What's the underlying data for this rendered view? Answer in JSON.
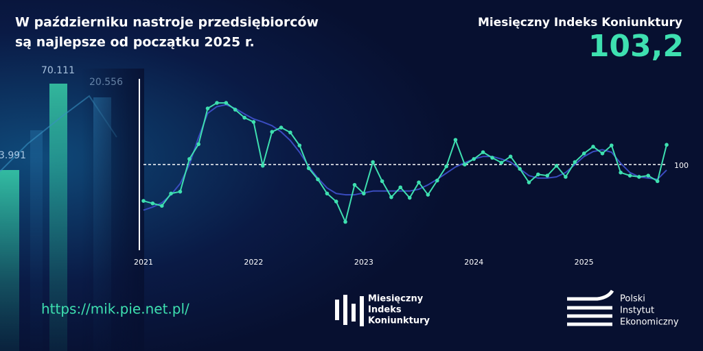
{
  "header": {
    "title": [
      "W październiku nastroje przedsiębiorców",
      "są najlepsze od początku 2025 r."
    ],
    "index_name": "Miesięczny Indeks Koniunktury",
    "index_value": "103,2"
  },
  "background_labels": [
    "70.111",
    "20.556",
    "3.991"
  ],
  "chart_data": {
    "type": "line",
    "x": [
      2021,
      2021.083,
      2021.167,
      2021.25,
      2021.333,
      2021.417,
      2021.5,
      2021.583,
      2021.667,
      2021.75,
      2021.833,
      2021.917,
      2022,
      2022.083,
      2022.167,
      2022.25,
      2022.333,
      2022.417,
      2022.5,
      2022.583,
      2022.667,
      2022.75,
      2022.833,
      2022.917,
      2023,
      2023.083,
      2023.167,
      2023.25,
      2023.333,
      2023.417,
      2023.5,
      2023.583,
      2023.667,
      2023.75,
      2023.833,
      2023.917,
      2024,
      2024.083,
      2024.167,
      2024.25,
      2024.333,
      2024.417,
      2024.5,
      2024.583,
      2024.667,
      2024.75,
      2024.833,
      2024.917,
      2025,
      2025.083,
      2025.167,
      2025.25,
      2025.333,
      2025.417,
      2025.5,
      2025.583,
      2025.667,
      2025.75
    ],
    "series": [
      {
        "color": "#3a4cc0",
        "markers": false,
        "values": [
          92.6,
          93.1,
          93.8,
          95.1,
          96.9,
          100,
          104.4,
          108.3,
          109.4,
          109.7,
          109.1,
          108.2,
          107.4,
          106.9,
          106.3,
          105.3,
          103.9,
          102,
          99.7,
          97.8,
          96.2,
          95.3,
          95.1,
          95.1,
          95.4,
          95.7,
          95.7,
          95.7,
          95.7,
          95.7,
          96,
          96.7,
          97.6,
          98.6,
          99.6,
          100.3,
          100.9,
          101.3,
          101.3,
          100.9,
          100.4,
          99.3,
          98.2,
          97.8,
          97.8,
          98,
          98.7,
          100,
          101.3,
          102.1,
          102.4,
          102,
          100.2,
          98.7,
          98,
          97.8,
          97.6,
          99.1
        ]
      },
      {
        "color": "#3ee0b0",
        "markers": true,
        "values": [
          94.1,
          93.7,
          93.3,
          95.3,
          95.6,
          100.9,
          103.3,
          109.1,
          110,
          110,
          108.9,
          107.6,
          106.9,
          99.8,
          105.3,
          106,
          105.2,
          103.1,
          99.4,
          97.6,
          95.3,
          94,
          90.7,
          96.7,
          95.3,
          100.4,
          97.3,
          94.7,
          96.3,
          94.6,
          97.1,
          95.1,
          97.4,
          99.7,
          104,
          100,
          100.9,
          102,
          101.1,
          100.3,
          101.3,
          99.3,
          97.1,
          98.4,
          98.2,
          99.8,
          98,
          100.4,
          101.8,
          102.9,
          101.8,
          103.1,
          98.7,
          98.2,
          98,
          98.2,
          97.3,
          103.2
        ]
      }
    ],
    "xlim": [
      2021,
      2025.75
    ],
    "xticks": [
      2021,
      2022,
      2023,
      2024,
      2025
    ],
    "ylim": [
      86.1,
      113.9
    ],
    "reference_line": 100
  },
  "footer": {
    "url": "https://mik.pie.net.pl/",
    "logo_mik": [
      "Miesięczny",
      "Indeks",
      "Koniunktury"
    ],
    "logo_pie": [
      "Polski",
      "Instytut",
      "Ekonomiczny"
    ]
  }
}
